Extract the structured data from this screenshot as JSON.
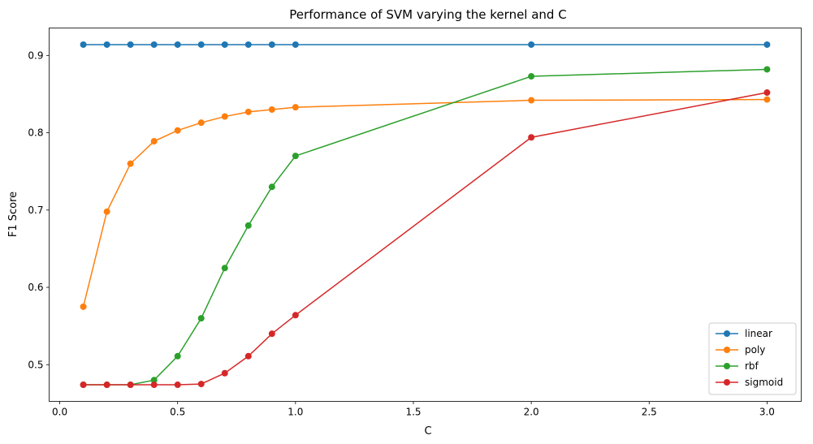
{
  "chart_data": {
    "type": "line",
    "title": "Performance of SVM varying the kernel and C",
    "xlabel": "C",
    "ylabel": "F1 Score",
    "xlim": [
      -0.045,
      3.145
    ],
    "ylim": [
      0.4525,
      0.9355
    ],
    "xticks": [
      0.0,
      0.5,
      1.0,
      1.5,
      2.0,
      2.5,
      3.0
    ],
    "xtick_labels": [
      "0.0",
      "0.5",
      "1.0",
      "1.5",
      "2.0",
      "2.5",
      "3.0"
    ],
    "yticks": [
      0.5,
      0.6,
      0.7,
      0.8,
      0.9
    ],
    "ytick_labels": [
      "0.5",
      "0.6",
      "0.7",
      "0.8",
      "0.9"
    ],
    "grid": false,
    "legend_position": "lower-right",
    "x": [
      0.1,
      0.2,
      0.3,
      0.4,
      0.5,
      0.6,
      0.7,
      0.8,
      0.9,
      1.0,
      2.0,
      3.0
    ],
    "series": [
      {
        "name": "linear",
        "color": "#1f77b4",
        "values": [
          0.914,
          0.914,
          0.914,
          0.914,
          0.914,
          0.914,
          0.914,
          0.914,
          0.914,
          0.914,
          0.914,
          0.914
        ]
      },
      {
        "name": "poly",
        "color": "#ff7f0e",
        "values": [
          0.575,
          0.698,
          0.76,
          0.789,
          0.803,
          0.813,
          0.821,
          0.827,
          0.83,
          0.833,
          0.842,
          0.843
        ]
      },
      {
        "name": "rbf",
        "color": "#2ca02c",
        "values": [
          0.474,
          0.474,
          0.474,
          0.48,
          0.511,
          0.56,
          0.625,
          0.68,
          0.73,
          0.77,
          0.873,
          0.882
        ]
      },
      {
        "name": "sigmoid",
        "color": "#d62728",
        "values": [
          0.474,
          0.474,
          0.474,
          0.474,
          0.474,
          0.475,
          0.489,
          0.511,
          0.54,
          0.564,
          0.794,
          0.852
        ]
      }
    ]
  }
}
